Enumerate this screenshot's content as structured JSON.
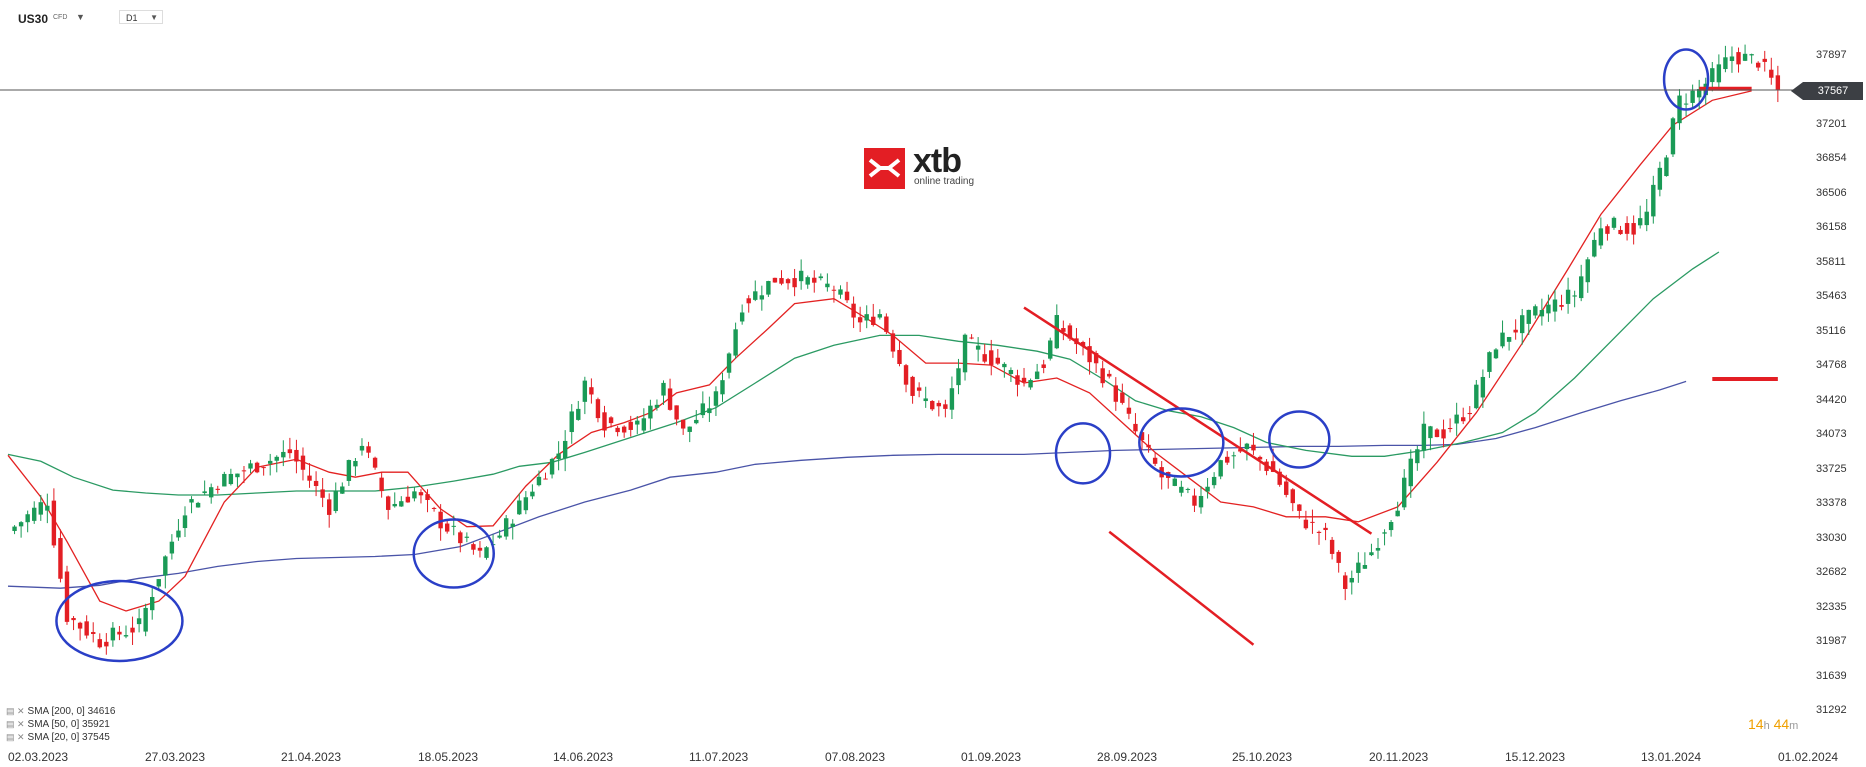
{
  "header": {
    "symbol": "US30",
    "symbol_tag": "CFD",
    "timeframe": "D1"
  },
  "logo": {
    "name": "xtb",
    "subtitle": "online trading"
  },
  "legend": [
    {
      "label": "SMA [200, 0] 34616"
    },
    {
      "label": "SMA [50, 0] 35921"
    },
    {
      "label": "SMA [20, 0] 37545"
    }
  ],
  "timer": {
    "h": "14",
    "h_unit": "h",
    "m": "44",
    "m_unit": "m"
  },
  "colors": {
    "up": "#1a9a56",
    "down": "#e31e24",
    "sma20": "#e32222",
    "sma50": "#2b9a63",
    "sma200": "#4a54a8",
    "annotation_circle": "#2a3fc7",
    "annotation_line": "#e31e24"
  },
  "chart_data": {
    "type": "candlestick",
    "yticks": [
      37897,
      37567,
      37201,
      36854,
      36506,
      36158,
      35811,
      35463,
      35116,
      34768,
      34420,
      34073,
      33725,
      33378,
      33030,
      32682,
      32335,
      31987,
      31639,
      31292
    ],
    "xticks": [
      "02.03.2023",
      "27.03.2023",
      "21.04.2023",
      "18.05.2023",
      "14.06.2023",
      "11.07.2023",
      "07.08.2023",
      "01.09.2023",
      "28.09.2023",
      "25.10.2023",
      "20.11.2023",
      "15.12.2023",
      "13.01.2024",
      "01.02.2024"
    ],
    "last_price": 37567,
    "close_path": [
      [
        0,
        33100
      ],
      [
        6,
        33420
      ],
      [
        9,
        32250
      ],
      [
        14,
        32000
      ],
      [
        20,
        32150
      ],
      [
        27,
        33350
      ],
      [
        32,
        33600
      ],
      [
        37,
        33750
      ],
      [
        43,
        33900
      ],
      [
        49,
        33350
      ],
      [
        54,
        34000
      ],
      [
        58,
        33350
      ],
      [
        62,
        33500
      ],
      [
        66,
        33200
      ],
      [
        72,
        32850
      ],
      [
        75,
        33070
      ],
      [
        80,
        33550
      ],
      [
        84,
        33900
      ],
      [
        88,
        34600
      ],
      [
        91,
        34200
      ],
      [
        96,
        34150
      ],
      [
        100,
        34550
      ],
      [
        103,
        34100
      ],
      [
        108,
        34450
      ],
      [
        112,
        35400
      ],
      [
        117,
        35650
      ],
      [
        121,
        35650
      ],
      [
        126,
        35550
      ],
      [
        130,
        35200
      ],
      [
        133,
        35300
      ],
      [
        138,
        34500
      ],
      [
        143,
        34300
      ],
      [
        146,
        35000
      ],
      [
        150,
        34850
      ],
      [
        155,
        34600
      ],
      [
        158,
        34800
      ],
      [
        160,
        35200
      ],
      [
        165,
        34850
      ],
      [
        168,
        34600
      ],
      [
        172,
        34100
      ],
      [
        176,
        33650
      ],
      [
        181,
        33400
      ],
      [
        185,
        33800
      ],
      [
        189,
        33950
      ],
      [
        193,
        33700
      ],
      [
        197,
        33250
      ],
      [
        201,
        33050
      ],
      [
        204,
        32550
      ],
      [
        208,
        32900
      ],
      [
        212,
        33400
      ],
      [
        216,
        34100
      ],
      [
        219,
        34100
      ],
      [
        223,
        34350
      ],
      [
        227,
        35000
      ],
      [
        233,
        35300
      ],
      [
        239,
        35500
      ],
      [
        243,
        36200
      ],
      [
        248,
        36150
      ],
      [
        250,
        36300
      ],
      [
        253,
        36950
      ],
      [
        255,
        37450
      ],
      [
        258,
        37550
      ],
      [
        263,
        37900
      ],
      [
        267,
        37850
      ],
      [
        270,
        37550
      ]
    ],
    "sma20": [
      [
        0,
        33870
      ],
      [
        5,
        33450
      ],
      [
        9,
        33000
      ],
      [
        14,
        32400
      ],
      [
        18,
        32300
      ],
      [
        23,
        32400
      ],
      [
        27,
        32650
      ],
      [
        33,
        33400
      ],
      [
        38,
        33750
      ],
      [
        44,
        33830
      ],
      [
        49,
        33700
      ],
      [
        53,
        33650
      ],
      [
        57,
        33700
      ],
      [
        61,
        33700
      ],
      [
        66,
        33330
      ],
      [
        70,
        33150
      ],
      [
        74,
        33160
      ],
      [
        79,
        33560
      ],
      [
        84,
        33880
      ],
      [
        89,
        34100
      ],
      [
        94,
        34200
      ],
      [
        98,
        34300
      ],
      [
        102,
        34500
      ],
      [
        107,
        34580
      ],
      [
        111,
        34850
      ],
      [
        116,
        35150
      ],
      [
        120,
        35400
      ],
      [
        126,
        35450
      ],
      [
        131,
        35250
      ],
      [
        135,
        35080
      ],
      [
        140,
        34800
      ],
      [
        145,
        34800
      ],
      [
        150,
        34780
      ],
      [
        155,
        34600
      ],
      [
        160,
        34650
      ],
      [
        165,
        34500
      ],
      [
        170,
        34200
      ],
      [
        175,
        33900
      ],
      [
        180,
        33650
      ],
      [
        185,
        33400
      ],
      [
        190,
        33350
      ],
      [
        195,
        33250
      ],
      [
        201,
        33250
      ],
      [
        206,
        33200
      ],
      [
        212,
        33350
      ],
      [
        218,
        33800
      ],
      [
        224,
        34300
      ],
      [
        231,
        35000
      ],
      [
        238,
        35750
      ],
      [
        243,
        36300
      ],
      [
        249,
        36800
      ],
      [
        254,
        37200
      ],
      [
        260,
        37450
      ],
      [
        266,
        37545
      ]
    ],
    "sma50": [
      [
        0,
        33880
      ],
      [
        5,
        33810
      ],
      [
        10,
        33650
      ],
      [
        16,
        33520
      ],
      [
        21,
        33490
      ],
      [
        26,
        33470
      ],
      [
        32,
        33470
      ],
      [
        38,
        33490
      ],
      [
        44,
        33510
      ],
      [
        50,
        33510
      ],
      [
        56,
        33510
      ],
      [
        62,
        33550
      ],
      [
        68,
        33610
      ],
      [
        74,
        33680
      ],
      [
        78,
        33760
      ],
      [
        83,
        33800
      ],
      [
        88,
        33900
      ],
      [
        95,
        34050
      ],
      [
        102,
        34200
      ],
      [
        108,
        34350
      ],
      [
        114,
        34600
      ],
      [
        120,
        34850
      ],
      [
        126,
        34980
      ],
      [
        133,
        35080
      ],
      [
        139,
        35080
      ],
      [
        145,
        35020
      ],
      [
        151,
        34980
      ],
      [
        157,
        34920
      ],
      [
        162,
        34840
      ],
      [
        167,
        34640
      ],
      [
        172,
        34420
      ],
      [
        177,
        34320
      ],
      [
        182,
        34260
      ],
      [
        187,
        34150
      ],
      [
        192,
        34000
      ],
      [
        198,
        33920
      ],
      [
        205,
        33860
      ],
      [
        210,
        33860
      ],
      [
        216,
        33920
      ],
      [
        222,
        34000
      ],
      [
        228,
        34100
      ],
      [
        233,
        34300
      ],
      [
        239,
        34650
      ],
      [
        245,
        35050
      ],
      [
        251,
        35450
      ],
      [
        257,
        35750
      ],
      [
        261,
        35921
      ]
    ],
    "sma200": [
      [
        0,
        32550
      ],
      [
        8,
        32530
      ],
      [
        14,
        32560
      ],
      [
        20,
        32630
      ],
      [
        26,
        32680
      ],
      [
        32,
        32750
      ],
      [
        38,
        32800
      ],
      [
        44,
        32830
      ],
      [
        50,
        32840
      ],
      [
        56,
        32850
      ],
      [
        62,
        32870
      ],
      [
        69,
        32950
      ],
      [
        75,
        33100
      ],
      [
        81,
        33250
      ],
      [
        88,
        33400
      ],
      [
        95,
        33520
      ],
      [
        101,
        33650
      ],
      [
        108,
        33700
      ],
      [
        114,
        33780
      ],
      [
        121,
        33820
      ],
      [
        128,
        33850
      ],
      [
        135,
        33870
      ],
      [
        142,
        33880
      ],
      [
        148,
        33880
      ],
      [
        155,
        33880
      ],
      [
        162,
        33900
      ],
      [
        169,
        33920
      ],
      [
        176,
        33930
      ],
      [
        183,
        33940
      ],
      [
        190,
        33950
      ],
      [
        197,
        33960
      ],
      [
        203,
        33960
      ],
      [
        210,
        33970
      ],
      [
        216,
        33970
      ],
      [
        221,
        33980
      ],
      [
        227,
        34040
      ],
      [
        233,
        34150
      ],
      [
        240,
        34300
      ],
      [
        246,
        34420
      ],
      [
        252,
        34530
      ],
      [
        256,
        34616
      ]
    ],
    "drawings": {
      "trendline_upper": [
        [
          155,
          35360
        ],
        [
          208,
          33080
        ]
      ],
      "trendline_lower": [
        [
          168,
          33100
        ],
        [
          190,
          31960
        ]
      ],
      "level_top": [
        [
          258,
          37567
        ],
        [
          266,
          37567
        ]
      ],
      "level_mid": [
        [
          260,
          34640
        ],
        [
          270,
          34640
        ]
      ],
      "circles": [
        [
          17,
          32200
        ],
        [
          68,
          32880
        ],
        [
          164,
          33890
        ],
        [
          179,
          34000
        ],
        [
          197,
          34030
        ],
        [
          256,
          37660
        ]
      ]
    }
  }
}
